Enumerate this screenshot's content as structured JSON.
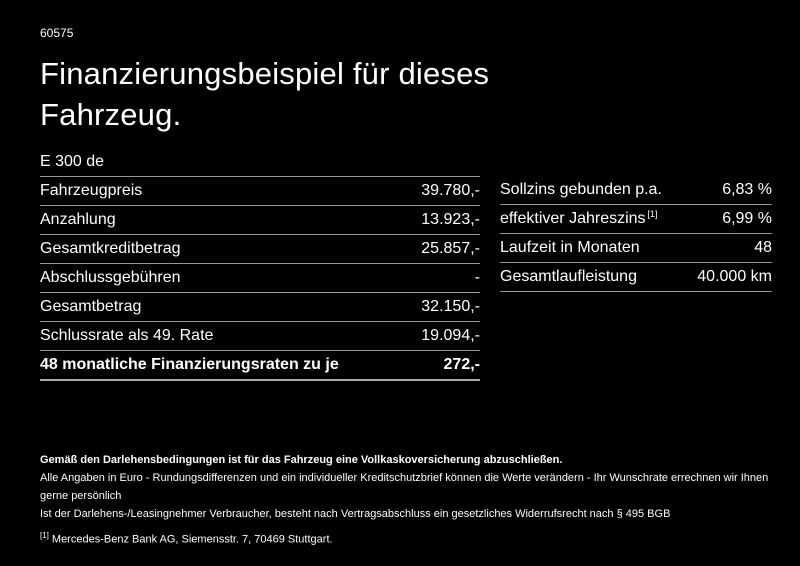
{
  "header": {
    "id_label": "60575",
    "title_line1": "Finanzierungsbeispiel für dieses",
    "title_line2": "Fahrzeug."
  },
  "left_table": {
    "header": "E 300 de",
    "rows": [
      {
        "label": "Fahrzeugpreis",
        "value": "39.780,-"
      },
      {
        "label": "Anzahlung",
        "value": "13.923,-"
      },
      {
        "label": "Gesamtkreditbetrag",
        "value": "25.857,-"
      },
      {
        "label": "Abschlussgebühren",
        "value": "-"
      },
      {
        "label": "Gesamtbetrag",
        "value": "32.150,-"
      },
      {
        "label": "Schlussrate als 49. Rate",
        "value": "19.094,-"
      }
    ],
    "total_row": {
      "label": "48 monatliche Finanzierungsraten zu je",
      "value": "272,-"
    }
  },
  "right_table": {
    "rows": [
      {
        "label": "Sollzins gebunden p.a.",
        "value": "6,83 %"
      },
      {
        "label": "effektiver Jahreszins",
        "label_sup": "[1]",
        "value": "6,99 %"
      },
      {
        "label": "Laufzeit in Monaten",
        "value": "48"
      },
      {
        "label": "Gesamtlaufleistung",
        "value": "40.000 km"
      }
    ]
  },
  "footer": {
    "bold_note": "Gemäß den Darlehensbedingungen ist für das Fahrzeug eine Vollkaskoversicherung abzuschließen.",
    "note2": "Alle Angaben in Euro - Rundungsdifferenzen und ein individueller Kreditschutzbrief können die Werte verändern - Ihr Wunschrate errechnen wir Ihnen gerne persönlich",
    "note3": "Ist der Darlehens-/Leasingnehmer Verbraucher, besteht nach Vertragsabschluss ein gesetzliches Widerrufsrecht nach § 495 BGB",
    "footnote_marker": "[1]",
    "footnote_text": "Mercedes-Benz Bank AG, Siemensstr. 7, 70469 Stuttgart."
  },
  "colors": {
    "background": "#000000",
    "text": "#ffffff",
    "divider": "#969696"
  }
}
